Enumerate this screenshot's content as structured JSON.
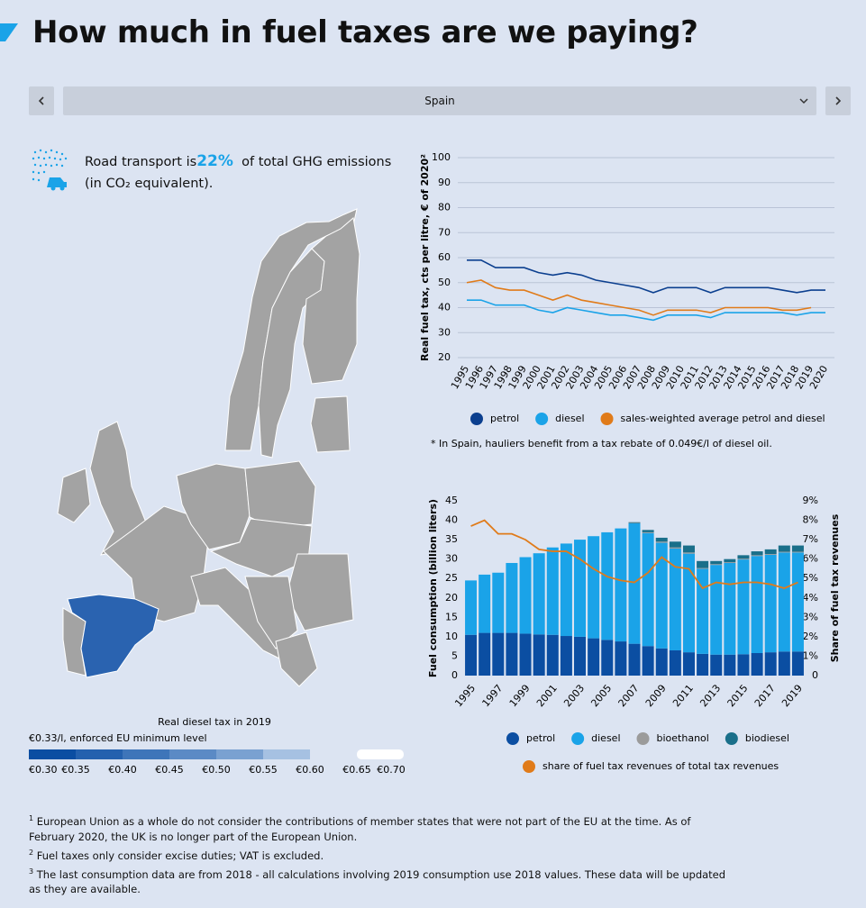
{
  "header": {
    "title": "How much in fuel taxes are we paying?"
  },
  "selector": {
    "value": "Spain"
  },
  "stat": {
    "before": "Road transport is",
    "highlight": "22%",
    "after": "of total GHG emissions (in CO₂ equivalent)."
  },
  "map_legend": {
    "title": "Real diesel tax in 2019",
    "note": "€0.33/l, enforced EU minimum level",
    "ticks": [
      {
        "value": 0.3,
        "label": "€0.30"
      },
      {
        "value": 0.35,
        "label": "€0.35"
      },
      {
        "value": 0.4,
        "label": "€0.40"
      },
      {
        "value": 0.45,
        "label": "€0.45"
      },
      {
        "value": 0.5,
        "label": "€0.50"
      },
      {
        "value": 0.55,
        "label": "€0.55"
      },
      {
        "value": 0.6,
        "label": "€0.60"
      },
      {
        "value": 0.65,
        "label": "€0.65"
      },
      {
        "value": 0.7,
        "label": "€0.70"
      }
    ],
    "colors": [
      "#0b4ea2",
      "#2461ae",
      "#3e75b9",
      "#5b8ac5",
      "#7aa1d1",
      "#a6c1e2",
      "#dce4f2",
      "#ffffff"
    ]
  },
  "chart_data": [
    {
      "type": "line",
      "ylabel": "Real fuel tax, cts per litre, € of 2020²",
      "categories": [
        "1995",
        "1996",
        "1997",
        "1998",
        "1999",
        "2000",
        "2001",
        "2002",
        "2003",
        "2004",
        "2005",
        "2006",
        "2007",
        "2008",
        "2009",
        "2010",
        "2011",
        "2012",
        "2013",
        "2014",
        "2015",
        "2016",
        "2017",
        "2018",
        "2019",
        "2020"
      ],
      "series": [
        {
          "name": "petrol",
          "color": "#0b3f8f",
          "values": [
            59,
            59,
            56,
            56,
            56,
            54,
            53,
            54,
            53,
            51,
            50,
            49,
            48,
            46,
            48,
            48,
            48,
            46,
            48,
            48,
            48,
            48,
            47,
            46,
            47,
            47
          ]
        },
        {
          "name": "diesel",
          "color": "#1ba3e8",
          "values": [
            43,
            43,
            41,
            41,
            41,
            39,
            38,
            40,
            39,
            38,
            37,
            37,
            36,
            35,
            37,
            37,
            37,
            36,
            38,
            38,
            38,
            38,
            38,
            37,
            38,
            38
          ]
        },
        {
          "name": "sales-weighted average petrol and diesel",
          "color": "#e07b1a",
          "values": [
            50,
            51,
            48,
            47,
            47,
            45,
            43,
            45,
            43,
            42,
            41,
            40,
            39,
            37,
            39,
            39,
            39,
            38,
            40,
            40,
            40,
            40,
            39,
            39,
            40,
            null
          ]
        }
      ],
      "ylim": [
        20,
        100
      ],
      "yticks": [
        20,
        30,
        40,
        50,
        60,
        70,
        80,
        90,
        100
      ],
      "grid": true,
      "note": "* In Spain, hauliers benefit from a tax rebate of 0.049€/l of diesel oil."
    },
    {
      "type": "bar",
      "stacked": true,
      "ylabel": "Fuel consumption (billion liters)",
      "y2label": "Share of fuel tax revenues",
      "categories": [
        "1995",
        null,
        "1997",
        null,
        "1999",
        null,
        "2001",
        null,
        "2003",
        null,
        "2005",
        null,
        "2007",
        null,
        "2009",
        null,
        "2011",
        null,
        "2013",
        null,
        "2015",
        null,
        "2017",
        null,
        "2019"
      ],
      "series": [
        {
          "name": "petrol",
          "color": "#0b4ea2",
          "values": [
            10.5,
            11,
            11,
            11,
            10.8,
            10.6,
            10.5,
            10.2,
            10,
            9.6,
            9.2,
            8.8,
            8.2,
            7.6,
            7,
            6.5,
            6,
            5.6,
            5.4,
            5.4,
            5.5,
            5.8,
            6,
            6.2,
            6.2
          ]
        },
        {
          "name": "diesel",
          "color": "#1aa3e8",
          "values": [
            14,
            15,
            15.5,
            18,
            19.7,
            20.9,
            22.5,
            23.8,
            25,
            26.3,
            27.7,
            29.1,
            31,
            29.1,
            27.2,
            26.2,
            25.4,
            21.9,
            23.1,
            23.6,
            24.4,
            25,
            25.1,
            25.5,
            25.5
          ]
        },
        {
          "name": "bioethanol",
          "color": "#9b9b9b",
          "values": [
            0,
            0,
            0,
            0,
            0,
            0,
            0,
            0,
            0,
            0,
            0,
            0,
            0.1,
            0.2,
            0.3,
            0.3,
            0.3,
            0.2,
            0.2,
            0.2,
            0.2,
            0.2,
            0.2,
            0.2,
            0.2
          ]
        },
        {
          "name": "biodiesel",
          "color": "#1a6f8a",
          "values": [
            0,
            0,
            0,
            0,
            0,
            0,
            0,
            0,
            0,
            0,
            0,
            0,
            0.2,
            0.6,
            1,
            1.5,
            1.8,
            1.8,
            0.8,
            0.8,
            0.9,
            1,
            1.2,
            1.6,
            1.6
          ]
        },
        {
          "name": "share of fuel tax revenues of total tax revenues",
          "color": "#e07b1a",
          "type": "line",
          "axis": "y2",
          "values": [
            7.7,
            8,
            7.3,
            7.3,
            7,
            6.5,
            6.4,
            6.4,
            6,
            5.5,
            5.1,
            4.9,
            4.8,
            5.3,
            6.1,
            5.6,
            5.5,
            4.5,
            4.8,
            4.7,
            4.8,
            4.8,
            4.7,
            4.5,
            4.8
          ]
        }
      ],
      "ylim": [
        0,
        45
      ],
      "yticks": [
        0,
        5,
        10,
        15,
        20,
        25,
        30,
        35,
        40,
        45
      ],
      "y2lim": [
        0,
        9
      ],
      "y2ticks": [
        0,
        {
          "value": 1,
          "label": "1%"
        },
        {
          "value": 2,
          "label": "2%"
        },
        {
          "value": 3,
          "label": "3%"
        },
        {
          "value": 4,
          "label": "4%"
        },
        {
          "value": 5,
          "label": "5%"
        },
        {
          "value": 6,
          "label": "6%"
        },
        {
          "value": 7,
          "label": "7%"
        },
        {
          "value": 8,
          "label": "8%"
        },
        {
          "value": 9,
          "label": "9%"
        }
      ],
      "grid": false
    }
  ],
  "footnotes": [
    {
      "marker": "1",
      "text": "European Union as a whole do not consider the contributions of member states that were not part of the EU at the time. As of February 2020, the UK is no longer part of the European Union."
    },
    {
      "marker": "2",
      "text": "Fuel taxes only consider excise duties; VAT is excluded."
    },
    {
      "marker": "3",
      "text": "The last consumption data are from 2018 - all calculations involving 2019 consumption use 2018 values. These data will be updated as they are available."
    }
  ]
}
